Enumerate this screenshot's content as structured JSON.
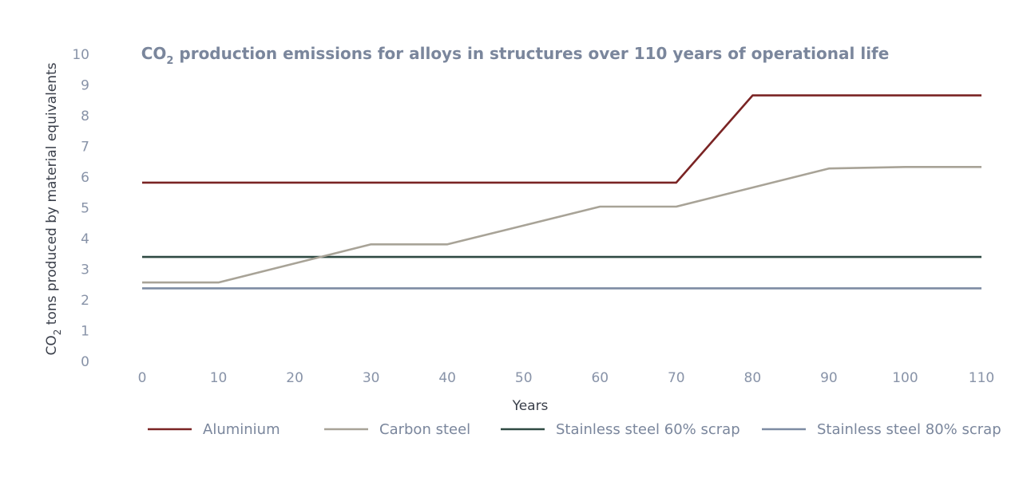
{
  "chart_data": {
    "type": "line",
    "title_main": "CO",
    "title_sub": "2",
    "title_rest": " production emissions for alloys in structures over 110 years of operational life",
    "xlabel": "Years",
    "ylabel_main": "CO",
    "ylabel_sub": "2",
    "ylabel_rest": " tons produced by material equivalents",
    "x": [
      0,
      10,
      20,
      30,
      40,
      50,
      60,
      70,
      80,
      90,
      100,
      110
    ],
    "x_ticks": [
      "0",
      "10",
      "20",
      "30",
      "40",
      "50",
      "60",
      "70",
      "80",
      "90",
      "100",
      "110"
    ],
    "y_ticks": [
      "0",
      "1",
      "2",
      "3",
      "4",
      "5",
      "6",
      "7",
      "8",
      "9",
      "10"
    ],
    "xlim": [
      0,
      110
    ],
    "ylim": [
      0,
      10
    ],
    "grid": false,
    "legend_position": "bottom",
    "series": [
      {
        "name": "Aluminium",
        "color": "#7a2424",
        "points": [
          [
            0,
            5.82
          ],
          [
            70,
            5.82
          ],
          [
            80,
            8.66
          ],
          [
            110,
            8.66
          ]
        ]
      },
      {
        "name": "Carbon steel",
        "color": "#a8a397",
        "points": [
          [
            0,
            2.57
          ],
          [
            10,
            2.57
          ],
          [
            30,
            3.81
          ],
          [
            40,
            3.81
          ],
          [
            60,
            5.04
          ],
          [
            70,
            5.04
          ],
          [
            90,
            6.28
          ],
          [
            100,
            6.33
          ],
          [
            110,
            6.33
          ]
        ]
      },
      {
        "name": "Stainless steel 60% scrap",
        "color": "#2f4a43",
        "points": [
          [
            0,
            3.4
          ],
          [
            110,
            3.4
          ]
        ]
      },
      {
        "name": "Stainless steel 80% scrap",
        "color": "#7d8ba3",
        "points": [
          [
            0,
            2.38
          ],
          [
            110,
            2.38
          ]
        ]
      }
    ]
  }
}
